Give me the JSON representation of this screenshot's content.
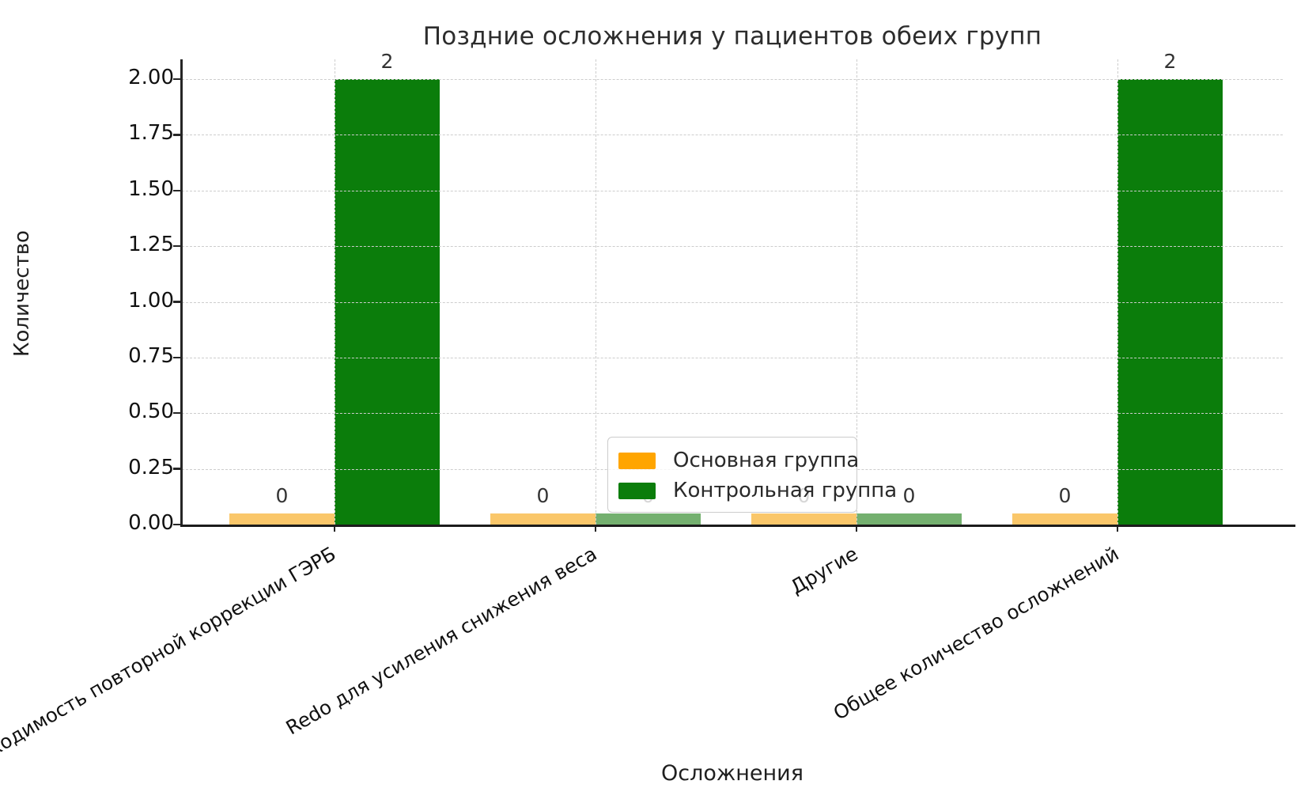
{
  "chart_data": {
    "type": "bar",
    "title": "Поздние осложнения у пациентов обеих групп",
    "xlabel": "Осложнения",
    "ylabel": "Количество",
    "categories": [
      "Необходимость повторной коррекции ГЭРБ",
      "Redo для усиления снижения веса",
      "Другие",
      "Общее количество осложнений"
    ],
    "series": [
      {
        "name": "Основная группа",
        "values": [
          0,
          0,
          0,
          0
        ],
        "color": "#FFA500",
        "zero_stub_color": "#FAC76A"
      },
      {
        "name": "Контрольная группа",
        "values": [
          2,
          0,
          0,
          2
        ],
        "color": "#0B7D0B",
        "zero_stub_color": "#74B06F"
      }
    ],
    "y_ticks": [
      {
        "value": 0.0,
        "label": "0.00"
      },
      {
        "value": 0.25,
        "label": "0.25"
      },
      {
        "value": 0.5,
        "label": "0.50"
      },
      {
        "value": 0.75,
        "label": "0.75"
      },
      {
        "value": 1.0,
        "label": "1.00"
      },
      {
        "value": 1.25,
        "label": "1.25"
      },
      {
        "value": 1.5,
        "label": "1.50"
      },
      {
        "value": 1.75,
        "label": "1.75"
      },
      {
        "value": 2.0,
        "label": "2.00"
      }
    ],
    "ylim": [
      0,
      2.09
    ],
    "zero_stub_height": 0.05,
    "grid": {
      "style": "dashed",
      "color": "#cdcdcd",
      "axis": "both",
      "above_bars": true
    },
    "legend": {
      "position": "lower center",
      "frame": true
    }
  }
}
